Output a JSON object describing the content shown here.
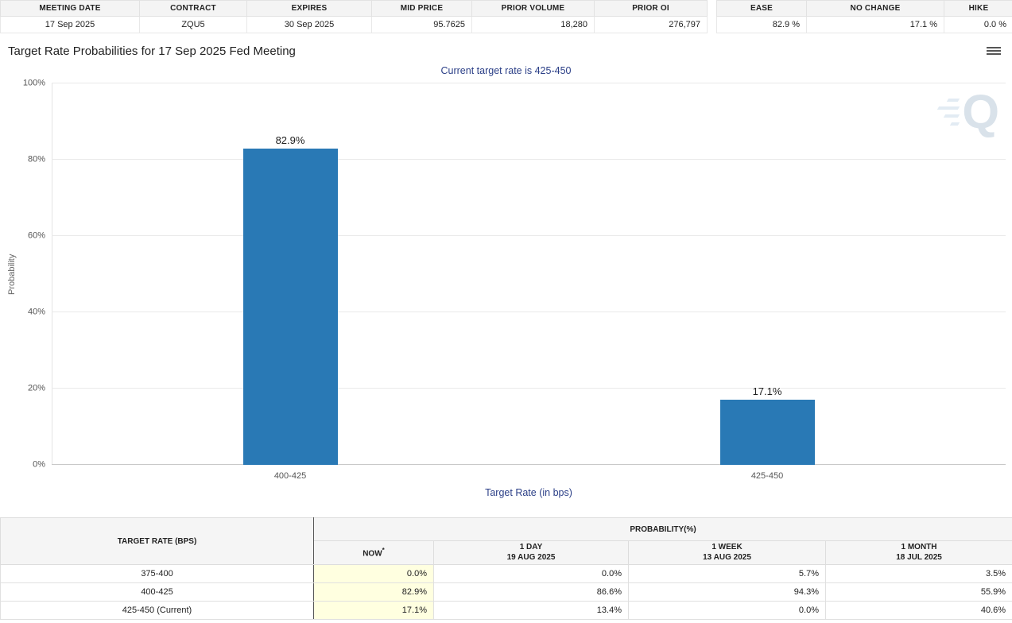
{
  "colors": {
    "bar": "#2979b5",
    "navy": "#2b3f87",
    "now_highlight": "#ffffe0"
  },
  "summary_left": [
    {
      "label": "MEETING DATE",
      "value": "17 Sep 2025"
    },
    {
      "label": "CONTRACT",
      "value": "ZQU5"
    },
    {
      "label": "EXPIRES",
      "value": "30 Sep 2025"
    },
    {
      "label": "MID PRICE",
      "value": "95.7625"
    },
    {
      "label": "PRIOR VOLUME",
      "value": "18,280"
    },
    {
      "label": "PRIOR OI",
      "value": "276,797"
    }
  ],
  "summary_right": [
    {
      "label": "EASE",
      "value": "82.9 %"
    },
    {
      "label": "NO CHANGE",
      "value": "17.1 %"
    },
    {
      "label": "HIKE",
      "value": "0.0 %"
    }
  ],
  "chart": {
    "title": "Target Rate Probabilities for 17 Sep 2025 Fed Meeting",
    "subtitle": "Current target rate is 425-450"
  },
  "chart_data": {
    "type": "bar",
    "categories": [
      "400-425",
      "425-450"
    ],
    "values": [
      82.9,
      17.1
    ],
    "bar_labels": [
      "82.9%",
      "17.1%"
    ],
    "title": "Target Rate Probabilities for 17 Sep 2025 Fed Meeting",
    "subtitle": "Current target rate is 425-450",
    "xlabel": "Target Rate (in bps)",
    "ylabel": "Probability",
    "ylim": [
      0,
      100
    ],
    "yticks": [
      "0%",
      "20%",
      "40%",
      "60%",
      "80%",
      "100%"
    ],
    "grid": "horizontal",
    "legend": "none"
  },
  "probability_table": {
    "rate_header": "TARGET RATE (BPS)",
    "group_header": "PROBABILITY(%)",
    "columns": [
      {
        "line1": "NOW",
        "sup": "*"
      },
      {
        "line1": "1 DAY",
        "line2": "19 AUG 2025"
      },
      {
        "line1": "1 WEEK",
        "line2": "13 AUG 2025"
      },
      {
        "line1": "1 MONTH",
        "line2": "18 JUL 2025"
      }
    ],
    "rows": [
      {
        "rate": "375-400",
        "values": [
          "0.0%",
          "0.0%",
          "5.7%",
          "3.5%"
        ]
      },
      {
        "rate": "400-425",
        "values": [
          "82.9%",
          "86.6%",
          "94.3%",
          "55.9%"
        ]
      },
      {
        "rate": "425-450 (Current)",
        "values": [
          "17.1%",
          "13.4%",
          "0.0%",
          "40.6%"
        ]
      }
    ]
  },
  "watermark": "Q"
}
